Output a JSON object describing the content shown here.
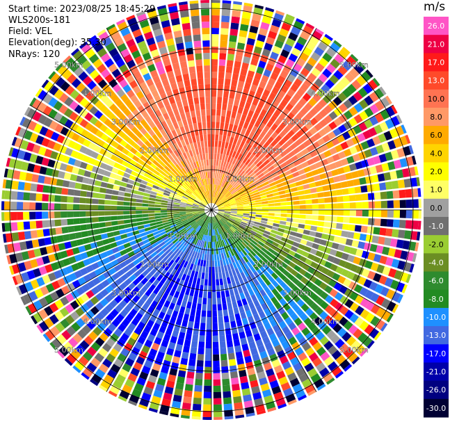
{
  "info": {
    "start_time": "Start time: 2023/08/25 18:45:29",
    "instrument": "WLS200s-181",
    "field": "Field: VEL",
    "elevation": "Elevation(deg): 35.30",
    "nrays": "NRays: 120"
  },
  "chart_data": {
    "type": "heatmap",
    "subtype": "ppi-polar",
    "field": "VEL",
    "nrays": 120,
    "range_rings_km": [
      1.0,
      2.0,
      3.0,
      4.0,
      5.0
    ],
    "range_ring_labels": [
      "1.00km",
      "2.00km",
      "3.00km",
      "4.00km",
      "5.00km"
    ],
    "radial_lines_deg": [
      0,
      30,
      60,
      90,
      120,
      150
    ],
    "colorbar": {
      "unit": "m/s",
      "tick_labels": [
        "26.0",
        "21.0",
        "17.0",
        "13.0",
        "10.0",
        "8.0",
        "6.0",
        "4.0",
        "2.0",
        "1.0",
        "0.0",
        "-1.0",
        "-2.0",
        "-4.0",
        "-6.0",
        "-8.0",
        "-10.0",
        "-13.0",
        "-17.0",
        "-21.0",
        "-26.0",
        "-30.0"
      ],
      "colors": [
        "#ff55c6",
        "#ee0044",
        "#ff1a1a",
        "#ff4a2a",
        "#ff7352",
        "#ff9966",
        "#ffaa00",
        "#ffd400",
        "#ffff00",
        "#ffff66",
        "#a0a0a0",
        "#707070",
        "#9acd32",
        "#6b8e23",
        "#2e8b2e",
        "#228b22",
        "#1e90ff",
        "#4169e1",
        "#0000ff",
        "#0000aa",
        "#000080",
        "#000033"
      ]
    }
  }
}
